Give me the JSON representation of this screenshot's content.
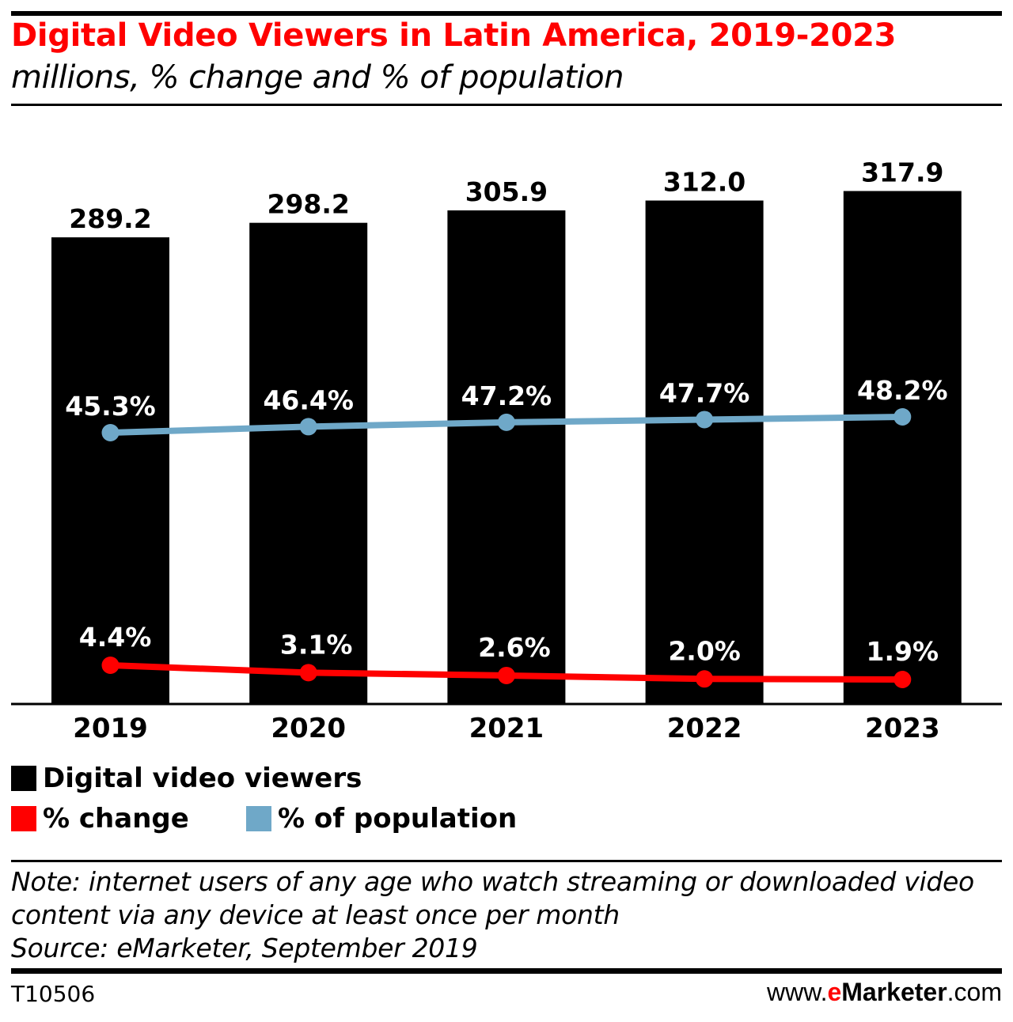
{
  "header": {
    "title": "Digital Video Viewers in Latin America, 2019-2023",
    "subtitle": "millions, % change and % of population"
  },
  "chart_data": {
    "type": "bar",
    "categories": [
      "2019",
      "2020",
      "2021",
      "2022",
      "2023"
    ],
    "series": [
      {
        "name": "Digital video viewers",
        "type": "bar",
        "values": [
          289.2,
          298.2,
          305.9,
          312.0,
          317.9
        ],
        "labels": [
          "289.2",
          "298.2",
          "305.9",
          "312.0",
          "317.9"
        ],
        "color": "#000000"
      },
      {
        "name": "% change",
        "type": "line",
        "values": [
          4.4,
          3.1,
          2.6,
          2.0,
          1.9
        ],
        "labels": [
          "4.4%",
          "3.1%",
          "2.6%",
          "2.0%",
          "1.9%"
        ],
        "color": "#ff0000"
      },
      {
        "name": "% of population",
        "type": "line",
        "values": [
          45.3,
          46.4,
          47.2,
          47.7,
          48.2
        ],
        "labels": [
          "45.3%",
          "46.4%",
          "47.2%",
          "47.7%",
          "48.2%"
        ],
        "color": "#6fa8c8"
      }
    ],
    "grid": false,
    "legend": "bottom-left"
  },
  "footer": {
    "note": "Note: internet users of any age who watch streaming or downloaded video content via any device at least once per month",
    "source": "Source: eMarketer, September 2019",
    "id": "T10506",
    "brand_prefix": "www.",
    "brand_e": "e",
    "brand_main": "Marketer",
    "brand_suffix": ".com"
  }
}
